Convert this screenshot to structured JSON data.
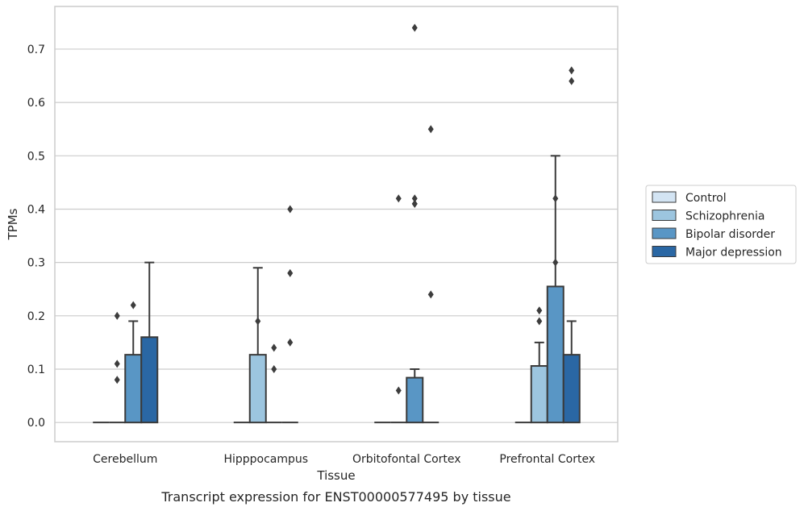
{
  "chart_data": {
    "type": "bar",
    "xlabel": "Tissue",
    "ylabel": "TPMs",
    "caption": "Transcript expression for ENST00000577495 by tissue",
    "ylim": [
      -0.036,
      0.78
    ],
    "yticks": [
      "0.0",
      "0.1",
      "0.2",
      "0.3",
      "0.4",
      "0.5",
      "0.6",
      "0.7"
    ],
    "grid": "horizontal",
    "legend_position": "right",
    "categories": [
      "Cerebellum",
      "Hipppocampus",
      "Orbitofontal Cortex",
      "Prefrontal Cortex"
    ],
    "series": [
      {
        "name": "Control",
        "color": "#d3e4f3",
        "values": [
          0.0,
          0.0,
          0.0,
          0.0
        ],
        "err_upper": [
          null,
          null,
          null,
          null
        ],
        "outliers": [
          [],
          [],
          [],
          []
        ]
      },
      {
        "name": "Schizophrenia",
        "color": "#9cc5df",
        "values": [
          0.0,
          0.127,
          0.0,
          0.106
        ],
        "err_upper": [
          null,
          0.29,
          null,
          0.15
        ],
        "outliers": [
          [
            0.08,
            0.11,
            0.2
          ],
          [
            0.19
          ],
          [
            0.06,
            0.42
          ],
          [
            0.19,
            0.21
          ]
        ]
      },
      {
        "name": "Bipolar disorder",
        "color": "#5996c5",
        "values": [
          0.127,
          0.0,
          0.084,
          0.255
        ],
        "err_upper": [
          0.19,
          null,
          0.1,
          0.5
        ],
        "outliers": [
          [
            0.22
          ],
          [
            0.1,
            0.14
          ],
          [
            0.41,
            0.41,
            0.42,
            0.74
          ],
          [
            0.3,
            0.42
          ]
        ]
      },
      {
        "name": "Major depression",
        "color": "#2a67a4",
        "values": [
          0.16,
          0.0,
          0.0,
          0.127
        ],
        "err_upper": [
          0.3,
          null,
          null,
          0.19
        ],
        "outliers": [
          [],
          [
            0.15,
            0.28,
            0.4
          ],
          [
            0.24,
            0.55
          ],
          [
            0.64,
            0.66
          ]
        ]
      }
    ]
  }
}
